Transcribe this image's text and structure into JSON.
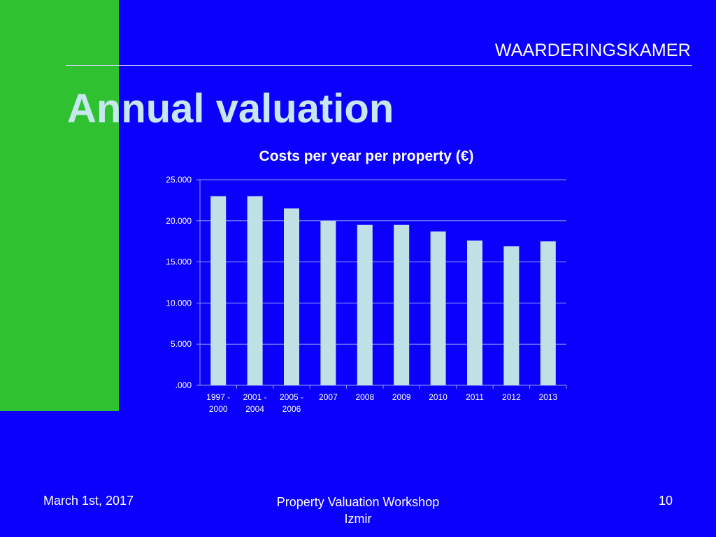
{
  "slide": {
    "org_name": "WAARDERINGSKAMER",
    "title": "Annual valuation",
    "footer": {
      "date": "March 1st, 2017",
      "center_line1": "Property Valuation Workshop",
      "center_line2": "Izmir",
      "page_number": "10"
    }
  },
  "colors": {
    "background": "#0a00fb",
    "accent_block": "#2fc12f",
    "title_text": "#c6e7f0",
    "bar_fill": "#bfe0e4",
    "grid": "#9aa0ff"
  },
  "chart_data": {
    "type": "bar",
    "title": "Costs per year per property (€)",
    "categories": [
      [
        "1997 -",
        "2000"
      ],
      [
        "2001 -",
        "2004"
      ],
      [
        "2005 -",
        "2006"
      ],
      [
        "2007"
      ],
      [
        "2008"
      ],
      [
        "2009"
      ],
      [
        "2010"
      ],
      [
        "2011"
      ],
      [
        "2012"
      ],
      [
        "2013"
      ]
    ],
    "values": [
      23000,
      23000,
      21500,
      20000,
      19500,
      19500,
      18700,
      17600,
      16900,
      17500
    ],
    "ylim": [
      0,
      25000
    ],
    "yticks": [
      0,
      5000,
      10000,
      15000,
      20000,
      25000
    ],
    "ytick_labels": [
      ".000",
      "5.000",
      "10.000",
      "15.000",
      "20.000",
      "25.000"
    ],
    "grid": true,
    "legend": "none"
  }
}
